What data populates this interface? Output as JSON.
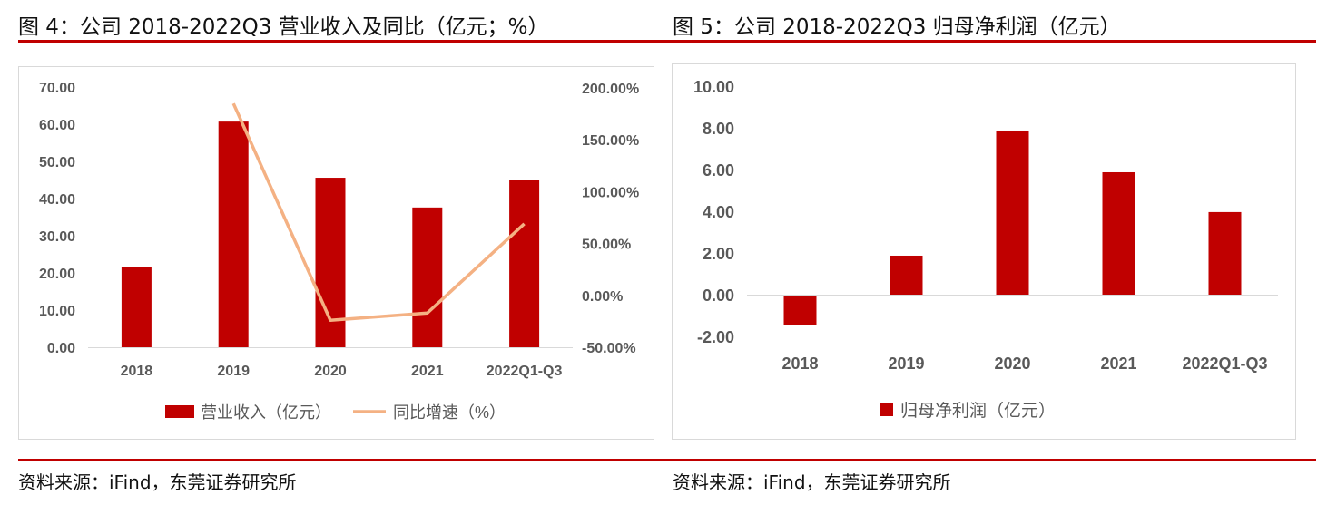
{
  "figures": [
    {
      "title": "图 4：公司 2018-2022Q3 营业收入及同比（亿元；%）",
      "source": "资料来源：iFind，东莞证券研究所"
    },
    {
      "title": "图 5：公司 2018-2022Q3 归母净利润（亿元）",
      "source": "资料来源：iFind，东莞证券研究所"
    }
  ],
  "colors": {
    "bar": "#c00000",
    "line": "#f4b183",
    "rule": "#c00000",
    "axis_text": "#595959",
    "gridline": "#d9d9d9"
  },
  "chart_data": [
    {
      "type": "bar+line",
      "title": "图 4：公司 2018-2022Q3 营业收入及同比（亿元；%）",
      "categories": [
        "2018",
        "2019",
        "2020",
        "2021",
        "2022Q1-Q3"
      ],
      "series": [
        {
          "name": "营业收入（亿元）",
          "type": "bar",
          "axis": "left",
          "values": [
            21.5,
            60.7,
            45.6,
            37.6,
            44.9
          ]
        },
        {
          "name": "同比增速（%）",
          "type": "line",
          "axis": "right",
          "values": [
            null,
            185,
            -24,
            -17,
            69
          ]
        }
      ],
      "left_axis": {
        "ylim": [
          0,
          70
        ],
        "ticks": [
          "0.00",
          "10.00",
          "20.00",
          "30.00",
          "40.00",
          "50.00",
          "60.00",
          "70.00"
        ]
      },
      "right_axis": {
        "ylim": [
          -50,
          200
        ],
        "ticks": [
          "-50.00%",
          "0.00%",
          "50.00%",
          "100.00%",
          "150.00%",
          "200.00%"
        ]
      },
      "legend": [
        "营业收入（亿元）",
        "同比增速（%）"
      ],
      "legend_position": "bottom",
      "grid": false
    },
    {
      "type": "bar",
      "title": "图 5：公司 2018-2022Q3 归母净利润（亿元）",
      "categories": [
        "2018",
        "2019",
        "2020",
        "2021",
        "2022Q1-Q3"
      ],
      "values": [
        -1.4,
        1.87,
        7.87,
        5.87,
        3.96
      ],
      "series": [
        {
          "name": "归母净利润（亿元）",
          "values": [
            -1.4,
            1.87,
            7.87,
            5.87,
            3.96
          ]
        }
      ],
      "ylim": [
        -2,
        10
      ],
      "ticks": [
        "-2.00",
        "0.00",
        "2.00",
        "4.00",
        "6.00",
        "8.00",
        "10.00"
      ],
      "legend": [
        "归母净利润（亿元）"
      ],
      "legend_position": "bottom",
      "grid": false
    }
  ]
}
